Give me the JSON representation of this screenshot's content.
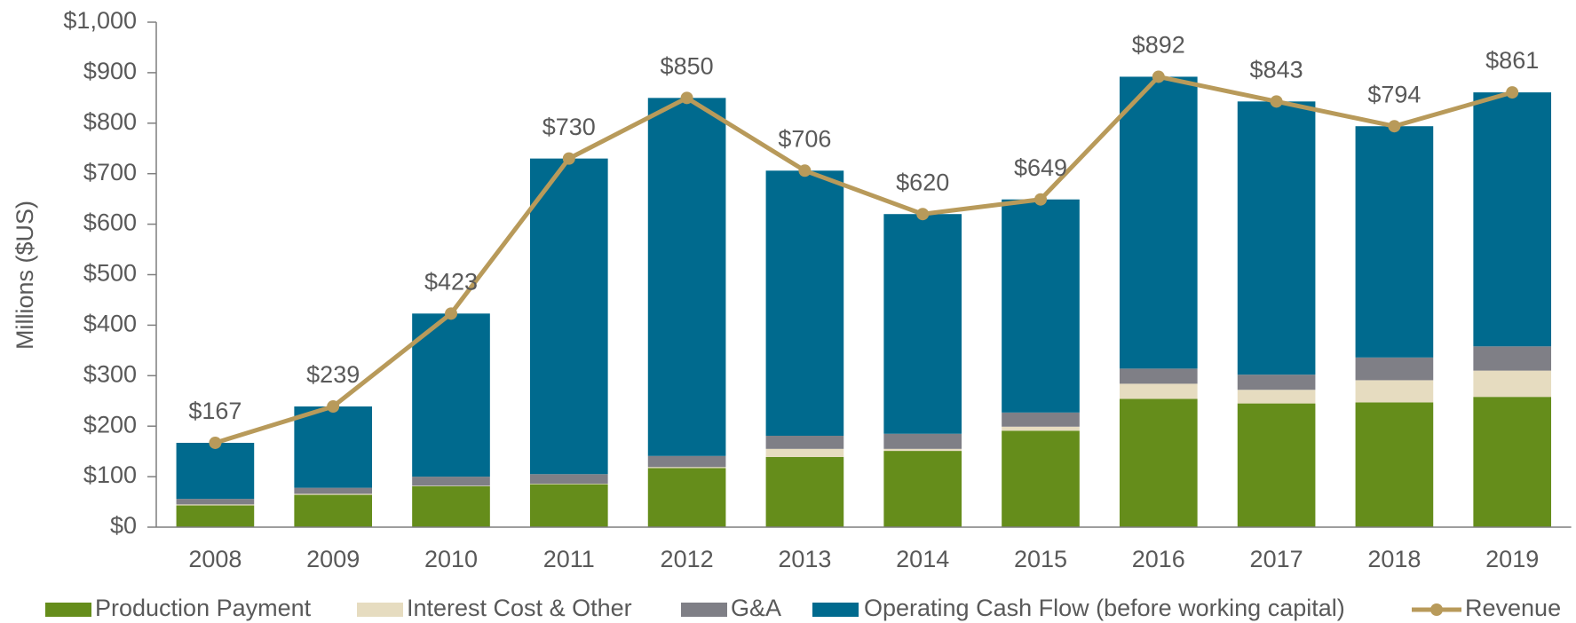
{
  "chart_data": {
    "type": "stacked-bar-line",
    "y_axis_label": "Millions ($US)",
    "categories": [
      "2008",
      "2009",
      "2010",
      "2011",
      "2012",
      "2013",
      "2014",
      "2015",
      "2016",
      "2017",
      "2018",
      "2019"
    ],
    "series": [
      {
        "name": "Production Payment",
        "color": "#658d1b",
        "values": [
          43,
          64,
          81,
          85,
          117,
          139,
          151,
          191,
          254,
          245,
          247,
          258
        ]
      },
      {
        "name": "Interest Cost & Other",
        "color": "#e6dcc0",
        "values": [
          2,
          2,
          1,
          1,
          2,
          16,
          4,
          8,
          30,
          27,
          44,
          52
        ]
      },
      {
        "name": "G&A",
        "color": "#7f7f86",
        "values": [
          11,
          12,
          18,
          19,
          22,
          26,
          30,
          28,
          30,
          30,
          45,
          48
        ]
      },
      {
        "name": "Operating Cash Flow (before working capital)",
        "color": "#006a8e",
        "values": [
          111,
          161,
          323,
          625,
          709,
          525,
          435,
          422,
          578,
          541,
          458,
          503
        ]
      },
      {
        "name": "Revenue",
        "color": "#b89a5a",
        "type": "line",
        "values": [
          167,
          239,
          423,
          730,
          850,
          706,
          620,
          649,
          892,
          843,
          794,
          861
        ],
        "value_labels": [
          "$167",
          "$239",
          "$423",
          "$730",
          "$850",
          "$706",
          "$620",
          "$649",
          "$892",
          "$843",
          "$794",
          "$861"
        ]
      }
    ],
    "ylim": [
      0,
      1000
    ],
    "yticks": [
      {
        "value": 0,
        "label": "$0"
      },
      {
        "value": 100,
        "label": "$100"
      },
      {
        "value": 200,
        "label": "$200"
      },
      {
        "value": 300,
        "label": "$300"
      },
      {
        "value": 400,
        "label": "$400"
      },
      {
        "value": 500,
        "label": "$500"
      },
      {
        "value": 600,
        "label": "$600"
      },
      {
        "value": 700,
        "label": "$700"
      },
      {
        "value": 800,
        "label": "$800"
      },
      {
        "value": 900,
        "label": "$900"
      },
      {
        "value": 1000,
        "label": "$1,000"
      }
    ],
    "legend": "bottom"
  }
}
